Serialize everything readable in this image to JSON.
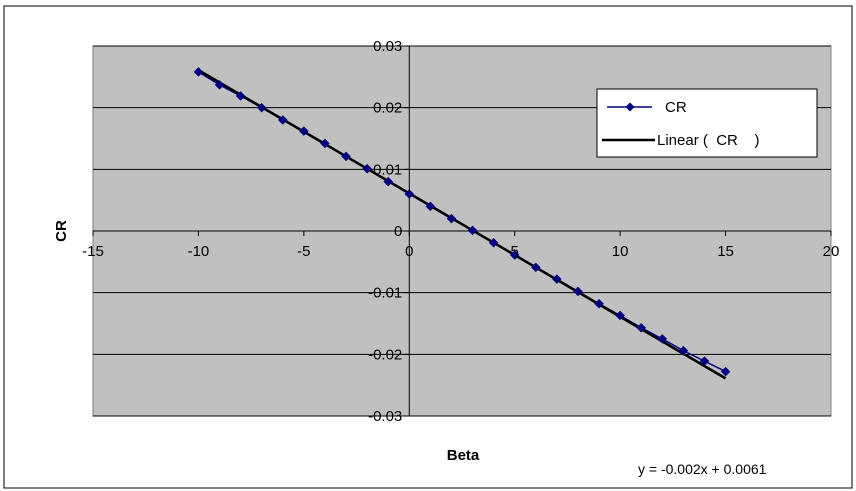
{
  "chart_data": {
    "type": "scatter",
    "xlabel": "Beta",
    "ylabel": "CR",
    "xlim": [
      -15,
      20
    ],
    "ylim": [
      -0.03,
      0.03
    ],
    "x_ticks": [
      "-15",
      "-10",
      "-5",
      "0",
      "5",
      "10",
      "15",
      "20"
    ],
    "y_ticks": [
      "0.03",
      "0.02",
      "0.01",
      "0",
      "-0.01",
      "-0.02",
      "-0.03"
    ],
    "grid": true,
    "legend_position": "top-right",
    "series": [
      {
        "name": "CR",
        "style": "line-with-diamond-markers",
        "color": "#000080",
        "x": [
          -10,
          -9,
          -8,
          -7,
          -6,
          -5,
          -4,
          -3,
          -2,
          -1,
          0,
          1,
          2,
          3,
          4,
          5,
          6,
          7,
          8,
          9,
          10,
          11,
          12,
          13,
          14,
          15
        ],
        "y": [
          0.0258,
          0.0237,
          0.0219,
          0.02,
          0.018,
          0.0162,
          0.0142,
          0.0121,
          0.0101,
          0.008,
          0.006,
          0.004,
          0.002,
          0.0001,
          -0.0019,
          -0.0039,
          -0.0059,
          -0.0078,
          -0.0098,
          -0.0118,
          -0.0137,
          -0.0157,
          -0.0175,
          -0.0194,
          -0.0211,
          -0.0228
        ]
      },
      {
        "name": "Linear (  CR    )",
        "style": "trendline",
        "color": "#000000",
        "x": [
          -10,
          15
        ],
        "y": [
          0.0261,
          -0.0239
        ]
      }
    ],
    "annotation": "y = -0.002x + 0.0061"
  }
}
